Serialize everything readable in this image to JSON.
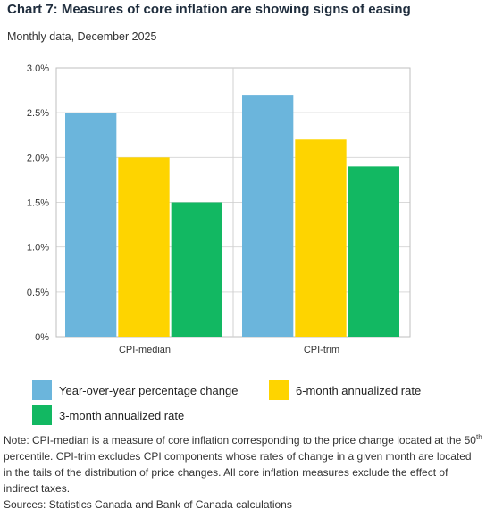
{
  "header": {
    "title": "Chart 7: Measures of core inflation are showing signs of easing",
    "subtitle": "Monthly data, December 2025"
  },
  "chart_data": {
    "type": "bar",
    "categories": [
      "CPI-median",
      "CPI-trim"
    ],
    "series": [
      {
        "name": "Year-over-year percentage change",
        "color": "#6bb5dc",
        "values": [
          2.5,
          2.7
        ]
      },
      {
        "name": "6-month annualized rate",
        "color": "#fed400",
        "values": [
          2.0,
          2.2
        ]
      },
      {
        "name": "3-month annualized rate",
        "color": "#12b862",
        "values": [
          1.5,
          1.9
        ]
      }
    ],
    "yticks": [
      "0%",
      "0.5%",
      "1.0%",
      "1.5%",
      "2.0%",
      "2.5%",
      "3.0%"
    ],
    "ylim": [
      0,
      3.0
    ],
    "grid": true,
    "legend_position": "bottom"
  },
  "note": {
    "part1": "Note: CPI-median is a measure of core inflation corresponding to the price change located at the 50",
    "sup": "th",
    "part2": " percentile. CPI-trim excludes CPI components whose rates of change in a given month are located in the tails of the distribution of price changes. All core inflation measures exclude the effect of indirect taxes.",
    "sources": "Sources: Statistics Canada and Bank of Canada calculations"
  }
}
